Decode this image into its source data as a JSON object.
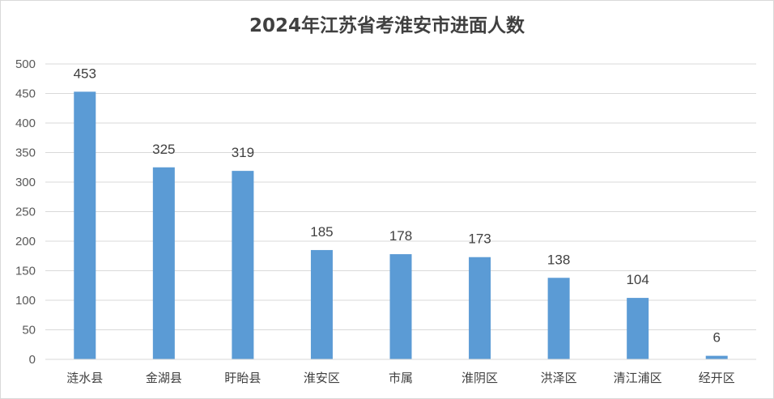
{
  "chart_data": {
    "type": "bar",
    "title": "2024年江苏省考淮安市进面人数",
    "categories": [
      "涟水县",
      "金湖县",
      "盱眙县",
      "淮安区",
      "市属",
      "淮阴区",
      "洪泽区",
      "清江浦区",
      "经开区"
    ],
    "values": [
      453,
      325,
      319,
      185,
      178,
      173,
      138,
      104,
      6
    ],
    "ylim": [
      0,
      500
    ],
    "yticks": [
      0,
      50,
      100,
      150,
      200,
      250,
      300,
      350,
      400,
      450,
      500
    ],
    "grid": true,
    "legend": "none",
    "colors": {
      "bar": "#5b9bd5",
      "grid": "#d9d9d9"
    }
  }
}
